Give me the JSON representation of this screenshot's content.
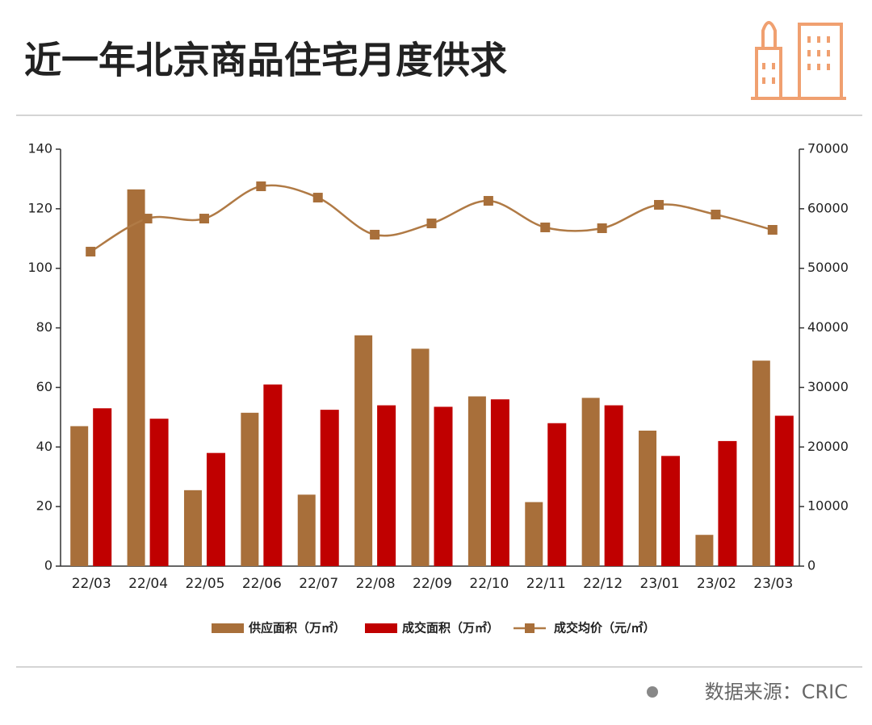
{
  "chart_data": {
    "type": "bar",
    "title": "近一年北京商品住宅月度供求",
    "categories": [
      "22/03",
      "22/04",
      "22/05",
      "22/06",
      "22/07",
      "22/08",
      "22/09",
      "22/10",
      "22/11",
      "22/12",
      "23/01",
      "23/02",
      "23/03"
    ],
    "series": [
      {
        "name": "供应面积（万㎡）",
        "color": "#a86f3a",
        "type": "bar",
        "values": [
          47,
          126.5,
          25.5,
          51.5,
          24,
          77.5,
          73,
          57,
          21.5,
          56.5,
          45.5,
          10.5,
          69
        ]
      },
      {
        "name": "成交面积（万㎡）",
        "color": "#c00000",
        "type": "bar",
        "values": [
          53,
          49.5,
          38,
          61,
          52.5,
          54,
          53.5,
          56,
          48,
          54,
          37,
          42,
          50.5
        ]
      },
      {
        "name": "成交均价（元/㎡）",
        "color": "#b07a45",
        "type": "line",
        "axis": "y2",
        "values": [
          52800,
          58350,
          58350,
          63770,
          61870,
          55650,
          57540,
          61330,
          56870,
          56730,
          60660,
          59030,
          56460
        ]
      }
    ],
    "ylim": [
      0,
      140
    ],
    "yticks": [
      0,
      20,
      40,
      60,
      80,
      100,
      120,
      140
    ],
    "y2lim": [
      0,
      70000
    ],
    "y2ticks": [
      0,
      10000,
      20000,
      30000,
      40000,
      50000,
      60000,
      70000
    ],
    "source": "数据来源：CRIC"
  }
}
